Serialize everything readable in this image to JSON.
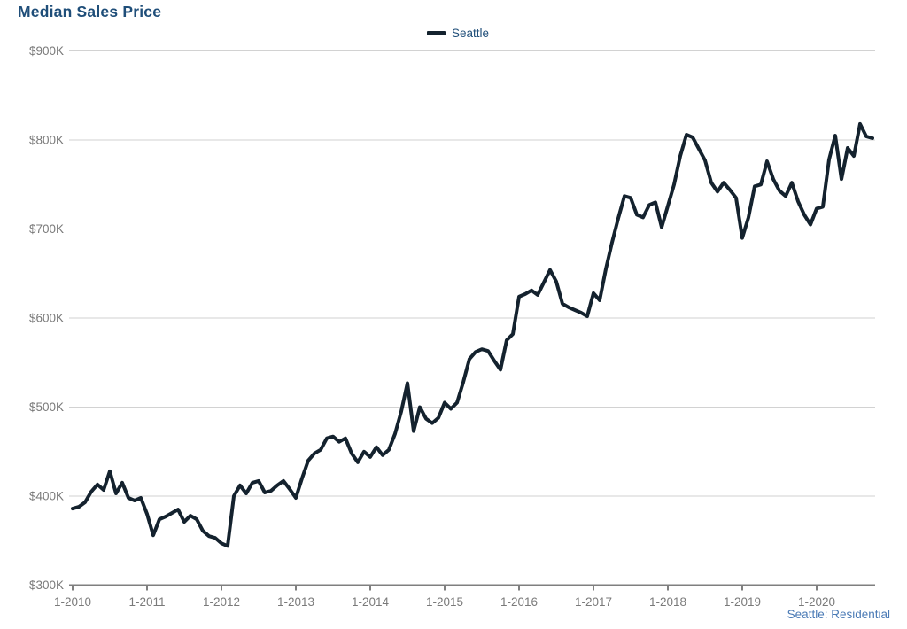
{
  "title": "Median Sales Price",
  "legend": {
    "label": "Seattle"
  },
  "footer": {
    "label": "Seattle: Residential"
  },
  "colors": {
    "title": "#1F4E79",
    "legend_text": "#1F4E79",
    "line": "#14222E",
    "axis_label": "#7A7A7A",
    "gridline": "#D2D2D2",
    "axis_line": "#7F7F7F",
    "footer": "#4A7AB5",
    "background": "#FFFFFF"
  },
  "chart_data": {
    "type": "line",
    "title": "Median Sales Price",
    "grid": "horizontal",
    "legend_position": "top-center",
    "annotation": "Seattle: Residential",
    "ylim": [
      300,
      900
    ],
    "y_unit": "USD thousands",
    "y_tick_labels": [
      "$300K",
      "$400K",
      "$500K",
      "$600K",
      "$700K",
      "$800K",
      "$900K"
    ],
    "y_tick_values": [
      300,
      400,
      500,
      600,
      700,
      800,
      900
    ],
    "x_tick_labels": [
      "1-2010",
      "1-2011",
      "1-2012",
      "1-2013",
      "1-2014",
      "1-2015",
      "1-2016",
      "1-2017",
      "1-2018",
      "1-2019",
      "1-2020"
    ],
    "x_start": "2010-01",
    "x_end": "2020-10",
    "frequency": "monthly",
    "series": [
      {
        "name": "Seattle",
        "values": [
          386,
          388,
          393,
          405,
          413,
          407,
          428,
          403,
          415,
          398,
          395,
          398,
          380,
          356,
          374,
          377,
          381,
          385,
          371,
          378,
          374,
          361,
          355,
          353,
          347,
          344,
          400,
          412,
          403,
          415,
          417,
          404,
          406,
          412,
          417,
          408,
          398,
          420,
          440,
          448,
          452,
          465,
          467,
          461,
          465,
          448,
          438,
          450,
          444,
          455,
          446,
          452,
          470,
          495,
          527,
          473,
          500,
          487,
          482,
          488,
          505,
          498,
          505,
          528,
          554,
          562,
          565,
          563,
          552,
          542,
          575,
          582,
          624,
          627,
          631,
          626,
          640,
          654,
          641,
          616,
          612,
          609,
          606,
          602,
          628,
          620,
          655,
          685,
          712,
          737,
          735,
          716,
          713,
          727,
          730,
          702,
          726,
          750,
          782,
          806,
          803,
          790,
          777,
          752,
          742,
          752,
          744,
          735,
          690,
          713,
          748,
          750,
          776,
          756,
          743,
          737,
          752,
          731,
          716,
          705,
          723,
          725,
          778,
          805,
          756,
          791,
          782,
          818,
          804,
          802
        ]
      }
    ]
  }
}
